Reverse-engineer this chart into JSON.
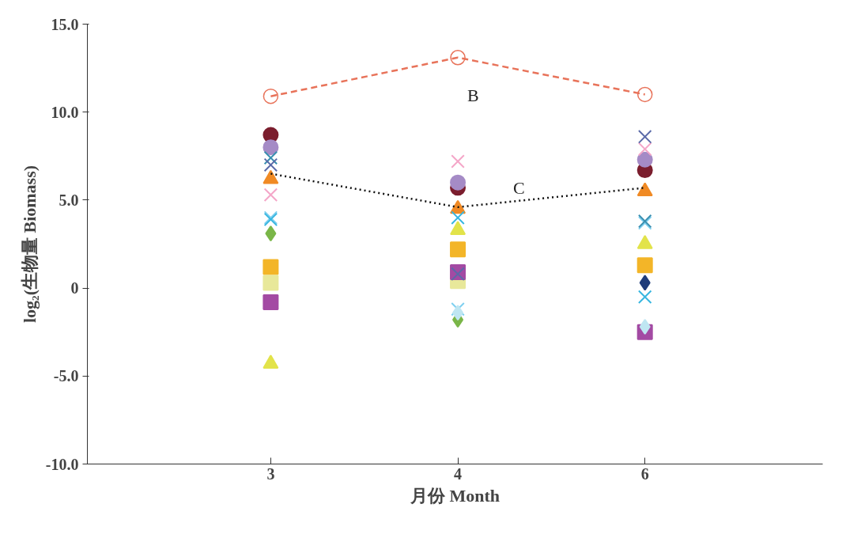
{
  "chart_data": {
    "type": "scatter",
    "xlabel": "月份 Month",
    "ylabel": "log₂(生物量 Biomass)",
    "categories": [
      "3",
      "4",
      "6"
    ],
    "ylim": [
      -10,
      15
    ],
    "yticks": [
      {
        "value": -10,
        "label": "-10.0"
      },
      {
        "value": -5,
        "label": "-5.0"
      },
      0,
      {
        "value": 5,
        "label": "5.0"
      },
      {
        "value": 10,
        "label": "10.0"
      },
      {
        "value": 15,
        "label": "15.0"
      }
    ],
    "grid": false,
    "series": [
      {
        "color": "#7b1e2e",
        "marker": "circle",
        "values": [
          8.7,
          5.7,
          6.7
        ]
      },
      {
        "color": "#a58bc6",
        "marker": "circle",
        "values": [
          8.0,
          6.0,
          7.3
        ]
      },
      {
        "color": "#f08a24",
        "marker": "triangle",
        "values": [
          6.2,
          4.5,
          5.5
        ]
      },
      {
        "color": "#f4a6c8",
        "marker": "cross",
        "values": [
          5.3,
          7.2,
          7.9
        ]
      },
      {
        "color": "#7fd0f0",
        "marker": "cross",
        "values": [
          4.0,
          -1.2,
          3.7
        ]
      },
      {
        "color": "#7ab648",
        "marker": "diamond",
        "values": [
          3.1,
          -1.8,
          null
        ]
      },
      {
        "color": "#f3b528",
        "marker": "square",
        "values": [
          1.2,
          2.2,
          1.3
        ]
      },
      {
        "color": "#e2e34a",
        "marker": "triangle",
        "values": [
          -4.3,
          3.3,
          2.5
        ]
      },
      {
        "color": "#e8e89a",
        "marker": "square",
        "values": [
          0.3,
          0.4,
          null
        ]
      },
      {
        "color": "#a34aa3",
        "marker": "square",
        "values": [
          -0.8,
          0.9,
          -2.5
        ]
      },
      {
        "color": "#1f3c7a",
        "marker": "diamond",
        "values": [
          null,
          null,
          0.3
        ]
      },
      {
        "color": "#bfe6f2",
        "marker": "diamond",
        "values": [
          null,
          -1.4,
          -2.2
        ]
      },
      {
        "color": "#3a8fb0",
        "marker": "cross",
        "values": [
          7.4,
          null,
          3.8
        ]
      },
      {
        "color": "#37b6e0",
        "marker": "cross",
        "values": [
          3.9,
          4.0,
          -0.5
        ]
      },
      {
        "color": "#5a6aa8",
        "marker": "cross",
        "values": [
          7.0,
          0.8,
          8.6
        ]
      },
      {
        "type": "line",
        "color": "#e8735a",
        "marker": "open_circle",
        "line_style": "dashed",
        "values": [
          10.9,
          13.1,
          11.0
        ]
      },
      {
        "type": "line",
        "color": "#111111",
        "marker": "none",
        "line_style": "dotted",
        "values": [
          6.5,
          4.6,
          5.7
        ]
      }
    ],
    "annotations": [
      "B",
      "C"
    ]
  }
}
